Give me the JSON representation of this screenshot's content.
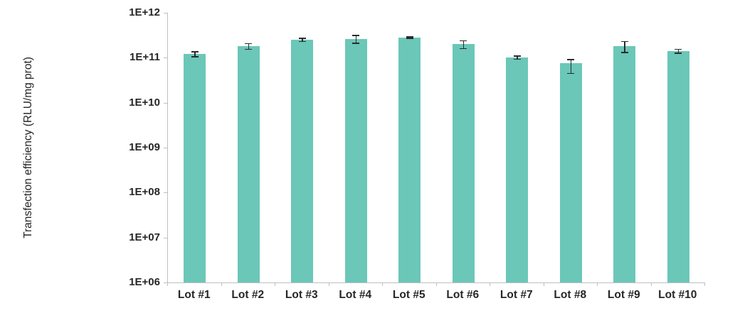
{
  "chart_data": {
    "type": "bar",
    "title": "",
    "xlabel": "",
    "ylabel": "Transfection efficiency (RLU/mg prot)",
    "categories": [
      "Lot #1",
      "Lot #2",
      "Lot #3",
      "Lot #4",
      "Lot #5",
      "Lot #6",
      "Lot #7",
      "Lot #8",
      "Lot #9",
      "Lot #10"
    ],
    "values": [
      120000000000.0,
      180000000000.0,
      250000000000.0,
      260000000000.0,
      280000000000.0,
      200000000000.0,
      100000000000.0,
      75000000000.0,
      180000000000.0,
      140000000000.0
    ],
    "error_plus": [
      15000000000.0,
      25000000000.0,
      20000000000.0,
      50000000000.0,
      10000000000.0,
      40000000000.0,
      8000000000.0,
      15000000000.0,
      50000000000.0,
      15000000000.0
    ],
    "error_minus": [
      15000000000.0,
      25000000000.0,
      20000000000.0,
      50000000000.0,
      10000000000.0,
      40000000000.0,
      8000000000.0,
      30000000000.0,
      50000000000.0,
      15000000000.0
    ],
    "yscale": "log",
    "ylim": [
      1000000.0,
      1000000000000.0
    ],
    "ytick_labels": [
      "1E+06",
      "1E+07",
      "1E+08",
      "1E+09",
      "1E+10",
      "1E+11",
      "1E+12"
    ],
    "grid": false,
    "legend": null,
    "bar_color": "#6bc7b8",
    "error_color": "#2b2b2b",
    "axis_color": "#bfbfbf",
    "text_color": "#262626"
  }
}
